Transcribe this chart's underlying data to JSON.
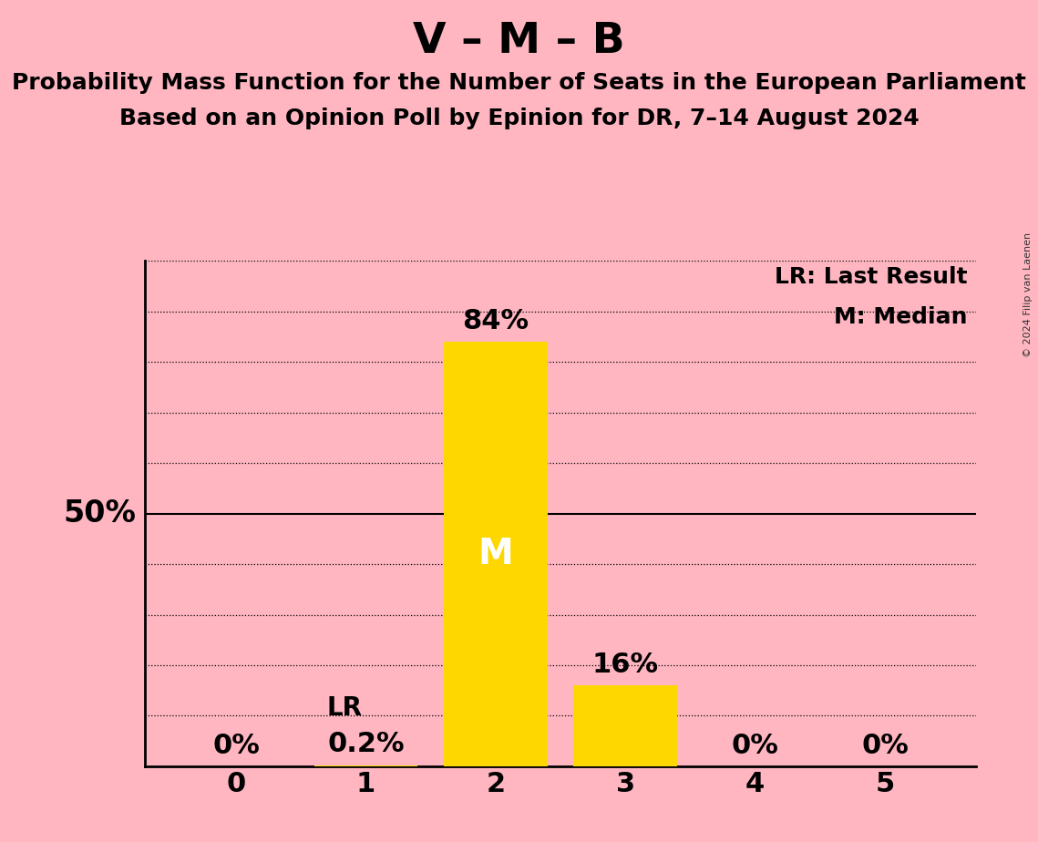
{
  "title": "V – M – B",
  "subtitle1": "Probability Mass Function for the Number of Seats in the European Parliament",
  "subtitle2": "Based on an Opinion Poll by Epinion for DR, 7–14 August 2024",
  "copyright": "© 2024 Filip van Laenen",
  "categories": [
    0,
    1,
    2,
    3,
    4,
    5
  ],
  "values": [
    0.0,
    0.2,
    84.0,
    16.0,
    0.0,
    0.0
  ],
  "bar_color": "#FFD700",
  "background_color": "#FFB6C1",
  "ylim": [
    0,
    100
  ],
  "yticks": [
    0,
    10,
    20,
    30,
    40,
    50,
    60,
    70,
    80,
    90,
    100
  ],
  "bar_labels": [
    "0%",
    "0.2%",
    "84%",
    "16%",
    "0%",
    "0%"
  ],
  "median_bar": 2,
  "median_label": "M",
  "lr_bar": 1,
  "lr_label": "LR",
  "legend_lr": "LR: Last Result",
  "legend_m": "M: Median",
  "title_fontsize": 34,
  "subtitle_fontsize": 18,
  "axis_tick_fontsize": 22,
  "bar_label_fontsize": 22,
  "legend_fontsize": 18,
  "ylabel_fontsize": 24,
  "median_label_fontsize": 28,
  "lr_label_fontsize": 20
}
